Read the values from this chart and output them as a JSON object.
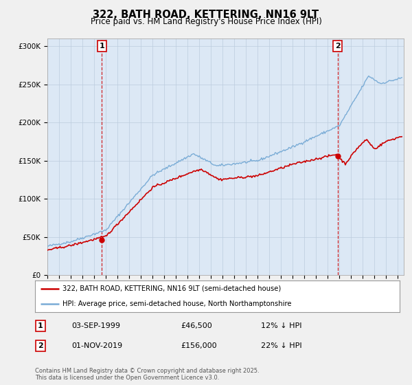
{
  "title": "322, BATH ROAD, KETTERING, NN16 9LT",
  "subtitle": "Price paid vs. HM Land Registry's House Price Index (HPI)",
  "red_label": "322, BATH ROAD, KETTERING, NN16 9LT (semi-detached house)",
  "blue_label": "HPI: Average price, semi-detached house, North Northamptonshire",
  "annotation1_date": "03-SEP-1999",
  "annotation1_price": "£46,500",
  "annotation1_hpi": "12% ↓ HPI",
  "annotation2_date": "01-NOV-2019",
  "annotation2_price": "£156,000",
  "annotation2_hpi": "22% ↓ HPI",
  "footnote": "Contains HM Land Registry data © Crown copyright and database right 2025.\nThis data is licensed under the Open Government Licence v3.0.",
  "red_color": "#cc0000",
  "blue_color": "#7aacd6",
  "vline_color": "#cc0000",
  "bg_color": "#f0f0f0",
  "plot_bg_color": "#dce8f5",
  "ylim": [
    0,
    310000
  ],
  "yticks": [
    0,
    50000,
    100000,
    150000,
    200000,
    250000,
    300000
  ],
  "xlim_start": 1995.0,
  "xlim_end": 2025.5,
  "vline1_x": 1999.67,
  "vline2_x": 2019.83,
  "sale1_x": 1999.67,
  "sale1_y": 46500,
  "sale2_x": 2019.83,
  "sale2_y": 156000
}
